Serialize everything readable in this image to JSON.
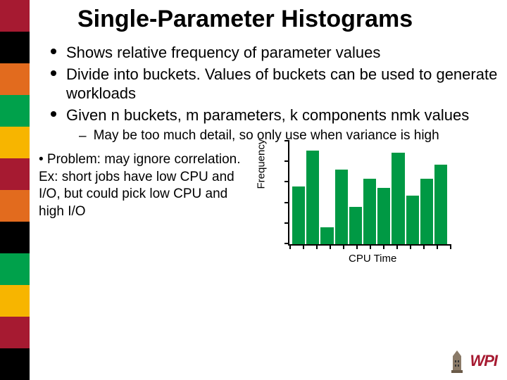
{
  "title": "Single-Parameter Histograms",
  "bullets": [
    "Shows relative frequency of parameter values",
    "Divide into buckets.  Values of buckets can be used to generate workloads",
    "Given n buckets, m parameters, k components nmk values"
  ],
  "sub_bullet": "May be too much detail, so only use when variance is high",
  "problem": "• Problem: may ignore correlation. Ex: short jobs have low CPU and I/O, but could pick low CPU and high I/O",
  "sidebar_colors": [
    "#a61a31",
    "#000000",
    "#e26b1e",
    "#00a14b",
    "#f7b500",
    "#a61a31",
    "#e26b1e",
    "#000000",
    "#00a14b",
    "#f7b500",
    "#a61a31",
    "#000000"
  ],
  "chart": {
    "type": "bar",
    "y_label": "Frequency",
    "x_label": "CPU Time",
    "bar_color": "#009944",
    "axis_color": "#000000",
    "values": [
      62,
      100,
      18,
      80,
      40,
      70,
      60,
      98,
      52,
      70,
      85
    ],
    "ylim": [
      0,
      110
    ],
    "y_ticks": [
      0,
      22,
      44,
      66,
      88,
      110
    ],
    "x_tick_count": 12
  },
  "logo": {
    "text": "WPI",
    "color": "#a61a31",
    "tower_color": "#7a6a5a"
  }
}
